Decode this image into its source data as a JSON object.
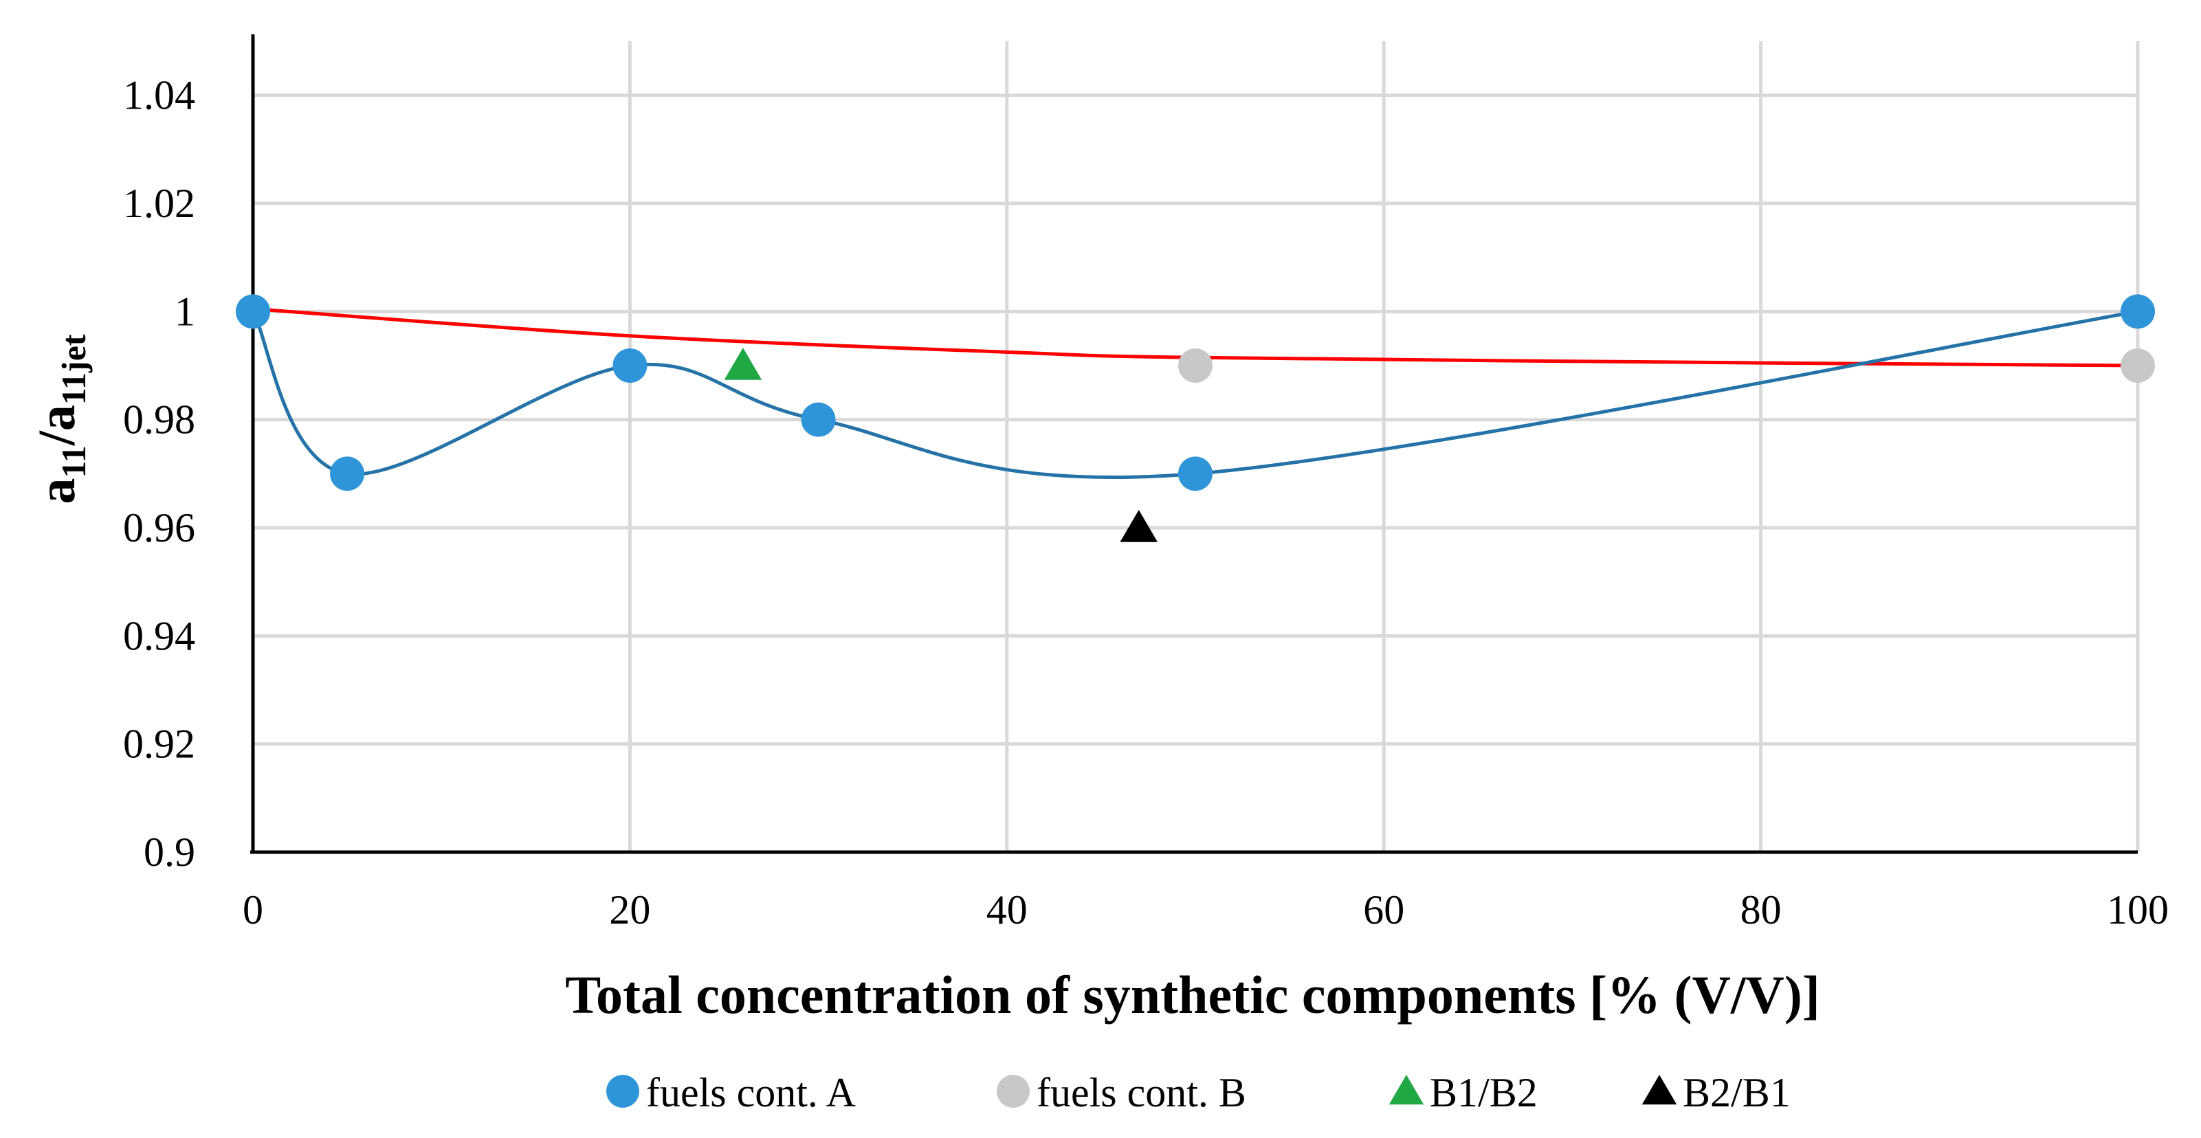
{
  "chart_data": {
    "type": "scatter",
    "xlabel": "Total concentration of synthetic components [% (V/V)]",
    "ylabel": {
      "main": "a",
      "sub1": "11",
      "slash": "/a",
      "sub2": "11jet"
    },
    "xlim": [
      0,
      100
    ],
    "ylim": [
      0.9,
      1.05
    ],
    "x_ticks": [
      0,
      20,
      40,
      60,
      80,
      100
    ],
    "x_tick_labels": [
      "0",
      "20",
      "40",
      "60",
      "80",
      "100"
    ],
    "y_ticks": [
      0.9,
      0.92,
      0.94,
      0.96,
      0.98,
      1,
      1.02,
      1.04
    ],
    "y_tick_labels": [
      "0.9",
      "0.92",
      "0.94",
      "0.96",
      "0.98",
      "1",
      "1.02",
      "1.04"
    ],
    "grid": true,
    "legend_position": "bottom",
    "series": [
      {
        "name": "fuels cont. A",
        "marker": "circle",
        "color": "#2E96D8",
        "x": [
          0,
          5,
          20,
          30,
          50,
          100
        ],
        "y": [
          1.0,
          0.97,
          0.99,
          0.98,
          0.97,
          1.0
        ],
        "smooth_line": true,
        "line_color": "#2473A8"
      },
      {
        "name": "fuels cont. B",
        "marker": "circle",
        "color": "#C8C8C8",
        "x": [
          0,
          50,
          100
        ],
        "y": [
          1.0,
          0.99,
          0.99
        ],
        "smooth_line": false
      },
      {
        "name": "B1/B2",
        "marker": "triangle",
        "color": "#1FA843",
        "x": [
          26
        ],
        "y": [
          0.99
        ],
        "smooth_line": false
      },
      {
        "name": "B2/B1",
        "marker": "triangle",
        "color": "#000000",
        "x": [
          47
        ],
        "y": [
          0.96
        ],
        "smooth_line": false
      }
    ],
    "trendline": {
      "color": "#FF0000",
      "x": [
        0,
        20,
        40,
        50,
        80,
        100
      ],
      "y": [
        1.0005,
        0.9955,
        0.9925,
        0.9915,
        0.9905,
        0.99
      ]
    }
  }
}
